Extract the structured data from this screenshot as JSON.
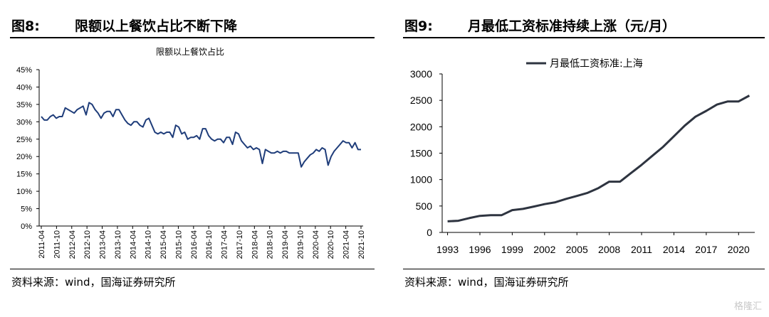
{
  "left": {
    "fig_num": "图8:",
    "fig_title": "限额以上餐饮占比不断下降",
    "source": "资料来源：wind，国海证券研究所"
  },
  "right": {
    "fig_num": "图9:",
    "fig_title": "月最低工资标准持续上涨（元/月）",
    "source": "资料来源：wind，国海证券研究所"
  },
  "watermark": "格隆汇",
  "chart_data": [
    {
      "type": "line",
      "title": "限额以上餐饮占比",
      "ylim": [
        0,
        45
      ],
      "y_ticks": [
        "0%",
        "5%",
        "10%",
        "15%",
        "20%",
        "25%",
        "30%",
        "35%",
        "40%",
        "45%"
      ],
      "x_ticks": [
        "2011-04",
        "2011-10",
        "2012-04",
        "2012-10",
        "2013-04",
        "2013-10",
        "2014-04",
        "2014-10",
        "2015-04",
        "2015-10",
        "2016-04",
        "2016-10",
        "2017-04",
        "2017-10",
        "2018-04",
        "2018-10",
        "2019-04",
        "2019-10",
        "2020-04",
        "2020-10",
        "2021-04",
        "2021-10"
      ],
      "color": "#1f3d7a",
      "series": [
        {
          "values": [
            31.5,
            30.5,
            30.5,
            31.5,
            32,
            31,
            31.5,
            31.5,
            34,
            33.5,
            33,
            32.5,
            33.5,
            34,
            34.5,
            32,
            35.5,
            35,
            33.5,
            32.5,
            31,
            32.5,
            33,
            33,
            31.5,
            33.5,
            33.5,
            32,
            30.5,
            29.5,
            29,
            30,
            30,
            29,
            28.5,
            30.5,
            31,
            29,
            27,
            26.5,
            27,
            26.5,
            27,
            27,
            25.5,
            29,
            28.5,
            26.5,
            27,
            25,
            25.5,
            25.5,
            26,
            25,
            28,
            28,
            26,
            25,
            24.5,
            25,
            25,
            24,
            25.5,
            25.5,
            23.5,
            27,
            26.5,
            24.5,
            23.5,
            22.5,
            23,
            22,
            22.5,
            22,
            18,
            22,
            21.5,
            21,
            21,
            21.5,
            21,
            21.5,
            21.5,
            21,
            21,
            21,
            21,
            17,
            18.5,
            19.5,
            20.5,
            21,
            22,
            21.5,
            22.5,
            22,
            17.5,
            20,
            21.5,
            22.5,
            23.5,
            24.5,
            24,
            24,
            22.5,
            24,
            22,
            22
          ]
        }
      ]
    },
    {
      "type": "line",
      "ylim": [
        0,
        3000
      ],
      "y_ticks": [
        "0",
        "500",
        "1000",
        "1500",
        "2000",
        "2500",
        "3000"
      ],
      "x_ticks": [
        "1993",
        "1996",
        "1999",
        "2002",
        "2005",
        "2008",
        "2011",
        "2014",
        "2017",
        "2020"
      ],
      "color": "#2e3440",
      "series": [
        {
          "name": "月最低工资标准:上海",
          "x": [
            1993,
            1994,
            1995,
            1996,
            1997,
            1998,
            1999,
            2000,
            2001,
            2002,
            2003,
            2004,
            2005,
            2006,
            2007,
            2008,
            2009,
            2010,
            2011,
            2012,
            2013,
            2014,
            2015,
            2016,
            2017,
            2018,
            2019,
            2020,
            2021
          ],
          "values": [
            210,
            220,
            270,
            314,
            325,
            325,
            423,
            445,
            490,
            535,
            570,
            635,
            690,
            750,
            840,
            960,
            960,
            1120,
            1280,
            1450,
            1620,
            1820,
            2020,
            2190,
            2300,
            2420,
            2480,
            2480,
            2590
          ]
        }
      ]
    }
  ]
}
